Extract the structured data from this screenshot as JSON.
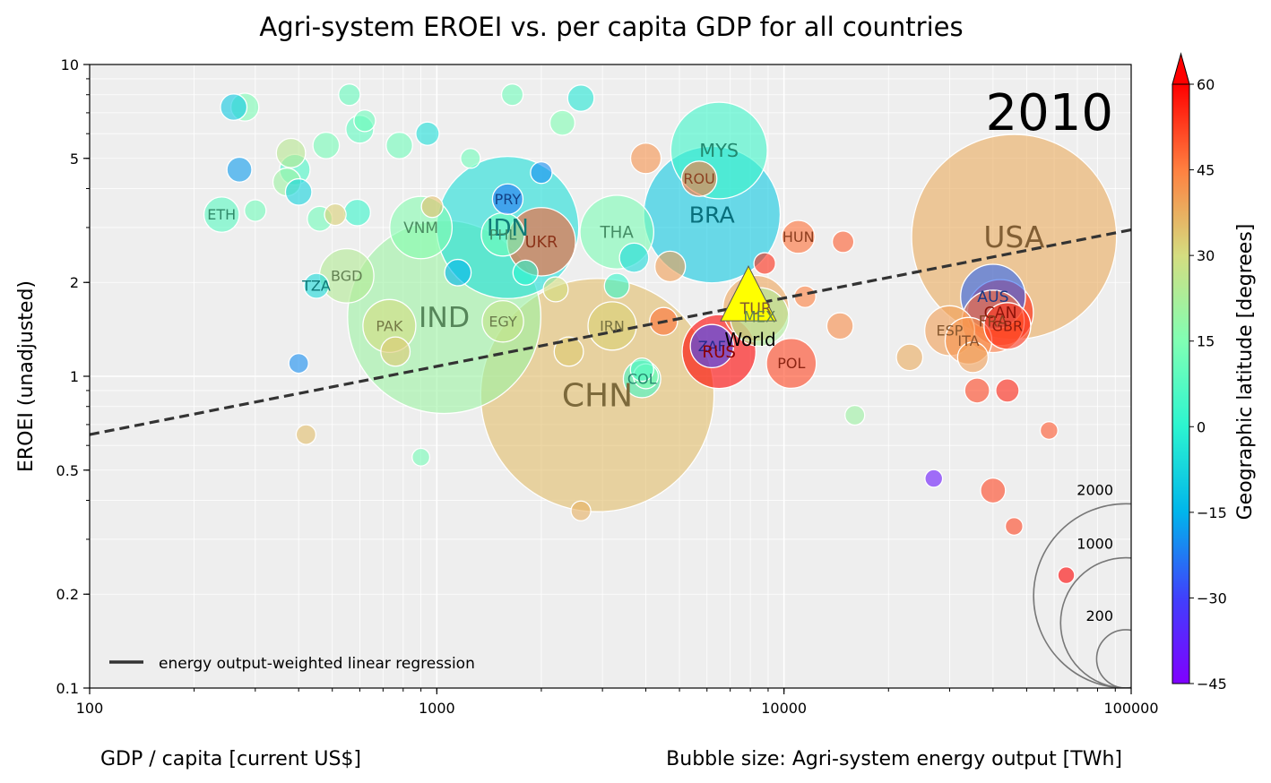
{
  "chart_data": {
    "type": "scatter",
    "title": "Agri-system EROEI vs. per capita GDP for all countries",
    "year_label": "2010",
    "xlabel": "GDP / capita [current US$]",
    "ylabel": "EROEI (unadjusted)",
    "size_label": "Bubble size: Agri-system energy output [TWh]",
    "xscale": "log",
    "yscale": "log",
    "xlim": [
      100,
      100000
    ],
    "ylim": [
      0.1,
      10
    ],
    "x_ticks": [
      100,
      1000,
      10000,
      100000
    ],
    "x_tick_labels": [
      "100",
      "1000",
      "10000",
      "100000"
    ],
    "y_ticks": [
      0.1,
      0.2,
      0.5,
      1,
      2,
      5,
      10
    ],
    "y_tick_labels": [
      "0.1",
      "0.2",
      "0.5",
      "1",
      "2",
      "5",
      "10"
    ],
    "grid": true,
    "colorbar": {
      "label": "Geographic latitude [degrees]",
      "min": -45,
      "max": 60,
      "ticks": [
        -45,
        -30,
        -15,
        0,
        15,
        30,
        45,
        60
      ],
      "tick_labels": [
        "−45",
        "−30",
        "−15",
        "0",
        "15",
        "30",
        "45",
        "60"
      ],
      "colormap": "rainbow",
      "extend": "max"
    },
    "size_legend": {
      "values": [
        2000,
        1000,
        200
      ],
      "labels": [
        "2000",
        "1000",
        "200"
      ]
    },
    "legend": {
      "position": "lower-left",
      "entries": [
        "energy output-weighted linear regression"
      ]
    },
    "regression": {
      "style": "dashed",
      "color": "#333333",
      "points": [
        [
          100,
          0.65
        ],
        [
          100000,
          2.95
        ]
      ]
    },
    "world": {
      "label": "World",
      "x": 7900,
      "y": 1.8,
      "color": "#ffff00"
    },
    "labeled_points": [
      {
        "label": "USA",
        "x": 46000,
        "y": 2.8,
        "size": 2700,
        "lat": 38
      },
      {
        "label": "CHN",
        "x": 2900,
        "y": 0.87,
        "size": 3500,
        "lat": 35
      },
      {
        "label": "IND",
        "x": 1050,
        "y": 1.55,
        "size": 2400,
        "lat": 20
      },
      {
        "label": "BRA",
        "x": 6200,
        "y": 3.3,
        "size": 1200,
        "lat": -10
      },
      {
        "label": "IDN",
        "x": 1600,
        "y": 3.0,
        "size": 1300,
        "lat": -5
      },
      {
        "label": "MYS",
        "x": 6500,
        "y": 5.3,
        "size": 600,
        "lat": 3
      },
      {
        "label": "THA",
        "x": 3300,
        "y": 2.9,
        "size": 350,
        "lat": 14
      },
      {
        "label": "PHL",
        "x": 1550,
        "y": 2.85,
        "size": 120,
        "lat": 12
      },
      {
        "label": "UKR",
        "x": 2000,
        "y": 2.7,
        "size": 300,
        "lat": 49
      },
      {
        "label": "PRY",
        "x": 1600,
        "y": 3.7,
        "size": 60,
        "lat": -23
      },
      {
        "label": "VNM",
        "x": 900,
        "y": 3.0,
        "size": 250,
        "lat": 16
      },
      {
        "label": "ETH",
        "x": 240,
        "y": 3.3,
        "size": 80,
        "lat": 8
      },
      {
        "label": "BGD",
        "x": 550,
        "y": 2.1,
        "size": 190,
        "lat": 24
      },
      {
        "label": "TZA",
        "x": 450,
        "y": 1.95,
        "size": 40,
        "lat": -6
      },
      {
        "label": "PAK",
        "x": 730,
        "y": 1.45,
        "size": 180,
        "lat": 30
      },
      {
        "label": "EGY",
        "x": 1550,
        "y": 1.5,
        "size": 110,
        "lat": 27
      },
      {
        "label": "IRN",
        "x": 3200,
        "y": 1.45,
        "size": 150,
        "lat": 32
      },
      {
        "label": "COL",
        "x": 3900,
        "y": 0.98,
        "size": 90,
        "lat": 4
      },
      {
        "label": "ROU",
        "x": 5700,
        "y": 4.3,
        "size": 80,
        "lat": 46
      },
      {
        "label": "HUN",
        "x": 11000,
        "y": 2.8,
        "size": 70,
        "lat": 47
      },
      {
        "label": "TUR",
        "x": 8300,
        "y": 1.65,
        "size": 280,
        "lat": 39
      },
      {
        "label": "MEX",
        "x": 8500,
        "y": 1.55,
        "size": 220,
        "lat": 23
      },
      {
        "label": "ZAF",
        "x": 6200,
        "y": 1.25,
        "size": 120,
        "lat": -29
      },
      {
        "label": "RUS",
        "x": 6500,
        "y": 1.2,
        "size": 350,
        "lat": 60
      },
      {
        "label": "POL",
        "x": 10500,
        "y": 1.1,
        "size": 160,
        "lat": 52
      },
      {
        "label": "ESP",
        "x": 30000,
        "y": 1.4,
        "size": 160,
        "lat": 40
      },
      {
        "label": "ITA",
        "x": 34000,
        "y": 1.3,
        "size": 140,
        "lat": 42
      },
      {
        "label": "AUS",
        "x": 40000,
        "y": 1.8,
        "size": 270,
        "lat": -25
      },
      {
        "label": "CAN",
        "x": 42000,
        "y": 1.6,
        "size": 280,
        "lat": 56
      },
      {
        "label": "FRA",
        "x": 40000,
        "y": 1.5,
        "size": 250,
        "lat": 46
      },
      {
        "label": "GBR",
        "x": 44000,
        "y": 1.45,
        "size": 140,
        "lat": 54
      }
    ],
    "other_points": [
      {
        "x": 260,
        "y": 7.3,
        "size": 45,
        "lat": -10
      },
      {
        "x": 280,
        "y": 7.3,
        "size": 50,
        "lat": 14
      },
      {
        "x": 560,
        "y": 8.0,
        "size": 30,
        "lat": 10
      },
      {
        "x": 270,
        "y": 4.6,
        "size": 40,
        "lat": -18
      },
      {
        "x": 370,
        "y": 4.2,
        "size": 50,
        "lat": 20
      },
      {
        "x": 380,
        "y": 5.2,
        "size": 55,
        "lat": 25
      },
      {
        "x": 390,
        "y": 4.6,
        "size": 60,
        "lat": 5
      },
      {
        "x": 400,
        "y": 3.9,
        "size": 45,
        "lat": -8
      },
      {
        "x": 480,
        "y": 5.5,
        "size": 45,
        "lat": 13
      },
      {
        "x": 300,
        "y": 3.4,
        "size": 30,
        "lat": 12
      },
      {
        "x": 600,
        "y": 6.2,
        "size": 50,
        "lat": 9
      },
      {
        "x": 620,
        "y": 6.6,
        "size": 30,
        "lat": 11
      },
      {
        "x": 780,
        "y": 5.5,
        "size": 45,
        "lat": 12
      },
      {
        "x": 940,
        "y": 6.0,
        "size": 35,
        "lat": -5
      },
      {
        "x": 1650,
        "y": 8.0,
        "size": 30,
        "lat": 12
      },
      {
        "x": 2600,
        "y": 7.8,
        "size": 45,
        "lat": -3
      },
      {
        "x": 2300,
        "y": 6.5,
        "size": 40,
        "lat": 15
      },
      {
        "x": 970,
        "y": 3.5,
        "size": 30,
        "lat": 35
      },
      {
        "x": 590,
        "y": 3.35,
        "size": 45,
        "lat": 2
      },
      {
        "x": 510,
        "y": 3.3,
        "size": 30,
        "lat": 32
      },
      {
        "x": 460,
        "y": 3.2,
        "size": 40,
        "lat": 12
      },
      {
        "x": 1250,
        "y": 5.0,
        "size": 25,
        "lat": 12
      },
      {
        "x": 1150,
        "y": 2.15,
        "size": 45,
        "lat": -15
      },
      {
        "x": 1800,
        "y": 2.15,
        "size": 40,
        "lat": 0
      },
      {
        "x": 2200,
        "y": 1.9,
        "size": 40,
        "lat": 30
      },
      {
        "x": 3300,
        "y": 1.95,
        "size": 40,
        "lat": 2
      },
      {
        "x": 3700,
        "y": 2.4,
        "size": 55,
        "lat": -6
      },
      {
        "x": 4000,
        "y": 5.0,
        "size": 60,
        "lat": 42
      },
      {
        "x": 4700,
        "y": 2.25,
        "size": 60,
        "lat": 40
      },
      {
        "x": 4500,
        "y": 1.5,
        "size": 50,
        "lat": 47
      },
      {
        "x": 8800,
        "y": 2.3,
        "size": 30,
        "lat": 55
      },
      {
        "x": 11500,
        "y": 1.8,
        "size": 30,
        "lat": 45
      },
      {
        "x": 14500,
        "y": 1.45,
        "size": 45,
        "lat": 43
      },
      {
        "x": 14800,
        "y": 2.7,
        "size": 30,
        "lat": 49
      },
      {
        "x": 23000,
        "y": 1.15,
        "size": 45,
        "lat": 38
      },
      {
        "x": 35000,
        "y": 1.15,
        "size": 60,
        "lat": 40
      },
      {
        "x": 36000,
        "y": 0.9,
        "size": 40,
        "lat": 52
      },
      {
        "x": 44000,
        "y": 0.9,
        "size": 35,
        "lat": 56
      },
      {
        "x": 40000,
        "y": 0.43,
        "size": 40,
        "lat": 52
      },
      {
        "x": 2400,
        "y": 1.2,
        "size": 55,
        "lat": 33
      },
      {
        "x": 760,
        "y": 1.2,
        "size": 55,
        "lat": 33
      },
      {
        "x": 4000,
        "y": 1.0,
        "size": 40,
        "lat": 15
      },
      {
        "x": 2600,
        "y": 0.37,
        "size": 25,
        "lat": 37
      },
      {
        "x": 420,
        "y": 0.65,
        "size": 25,
        "lat": 35
      },
      {
        "x": 900,
        "y": 0.55,
        "size": 20,
        "lat": 13
      },
      {
        "x": 400,
        "y": 1.1,
        "size": 25,
        "lat": -20
      },
      {
        "x": 16000,
        "y": 0.75,
        "size": 25,
        "lat": 20
      },
      {
        "x": 27000,
        "y": 0.47,
        "size": 20,
        "lat": -40
      },
      {
        "x": 58000,
        "y": 0.67,
        "size": 20,
        "lat": 50
      },
      {
        "x": 46000,
        "y": 0.33,
        "size": 20,
        "lat": 52
      },
      {
        "x": 65000,
        "y": 0.23,
        "size": 18,
        "lat": 60
      },
      {
        "x": 2000,
        "y": 4.5,
        "size": 30,
        "lat": -20
      },
      {
        "x": 3900,
        "y": 1.05,
        "size": 35,
        "lat": 6
      }
    ]
  }
}
